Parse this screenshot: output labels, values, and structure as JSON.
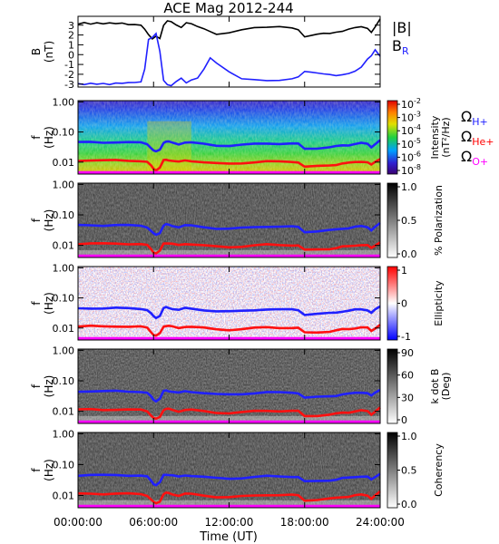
{
  "title": "ACE Mag 2012-244",
  "chart_data": [
    {
      "type": "line",
      "ylabel": "B",
      "yunit": "(nT)",
      "yticks": [
        "3",
        "2",
        "1",
        "0",
        "-1",
        "-2",
        "-3"
      ],
      "ylim": [
        -3.3,
        3.9
      ],
      "legend": [
        {
          "name": "|B|",
          "color": "#000000"
        },
        {
          "name": "B",
          "sub": "R",
          "color": "#2020ff"
        }
      ],
      "series": [
        {
          "name": "|B|",
          "color": "#000000",
          "x": [
            0,
            0.5,
            1,
            1.5,
            2,
            2.5,
            3,
            3.5,
            4,
            4.5,
            5,
            5.3,
            5.6,
            5.9,
            6.2,
            6.5,
            6.8,
            7.1,
            7.4,
            7.8,
            8.2,
            8.6,
            9,
            9.5,
            10,
            10.5,
            11,
            12,
            13,
            14,
            15,
            16,
            17,
            17.5,
            18,
            18.5,
            19,
            19.5,
            20,
            20.5,
            21,
            21.5,
            22,
            22.5,
            23,
            23.3,
            23.6,
            24
          ],
          "y": [
            3.1,
            3.2,
            3.1,
            3.2,
            3.1,
            3.2,
            3.1,
            3.2,
            3.1,
            3.1,
            3.0,
            2.6,
            2.1,
            1.6,
            1.9,
            1.6,
            2.9,
            3.4,
            3.3,
            3.0,
            2.7,
            3.2,
            3.1,
            2.9,
            2.7,
            2.4,
            2.1,
            2.3,
            2.6,
            2.8,
            2.7,
            2.8,
            2.7,
            2.5,
            1.8,
            1.9,
            2.0,
            2.1,
            2.2,
            2.3,
            2.4,
            2.6,
            2.8,
            2.9,
            2.7,
            2.2,
            2.8,
            3.6
          ]
        },
        {
          "name": "B_R",
          "color": "#2020ff",
          "x": [
            0,
            0.5,
            1,
            1.5,
            2,
            2.5,
            3,
            3.5,
            4,
            4.5,
            5,
            5.3,
            5.6,
            5.9,
            6.2,
            6.5,
            6.8,
            7.1,
            7.4,
            7.8,
            8.2,
            8.6,
            9,
            9.5,
            10,
            10.5,
            11,
            12,
            13,
            14,
            15,
            16,
            17,
            17.5,
            18,
            18.5,
            19,
            19.5,
            20,
            20.5,
            21,
            21.5,
            22,
            22.5,
            23,
            23.3,
            23.6,
            24
          ],
          "y": [
            -2.9,
            -3.0,
            -2.9,
            -3.0,
            -2.9,
            -3.0,
            -2.9,
            -3.0,
            -2.9,
            -2.9,
            -2.8,
            -1.5,
            1.5,
            1.8,
            2.2,
            0.4,
            -2.6,
            -3.0,
            -3.1,
            -2.7,
            -2.4,
            -2.9,
            -2.6,
            -2.4,
            -1.5,
            -0.4,
            -0.9,
            -1.8,
            -2.4,
            -2.5,
            -2.6,
            -2.6,
            -2.4,
            -2.2,
            -1.7,
            -1.8,
            -1.9,
            -2.0,
            -2.1,
            -2.2,
            -2.1,
            -2.0,
            -1.7,
            -1.2,
            -0.4,
            -0.1,
            0.5,
            -0.1
          ]
        }
      ]
    },
    {
      "type": "heatmap",
      "ylabel": "f",
      "yunit": "(Hz)",
      "yticks": [
        "1.00",
        "0.10",
        "0.01"
      ],
      "ylim": [
        0.004,
        1.1
      ],
      "yscale": "log",
      "colorbar": {
        "colormap": "rainbow",
        "ticks": [
          "10",
          "10",
          "10",
          "10",
          "10",
          "10"
        ],
        "exponents": [
          "-2",
          "-3",
          "-4",
          "-5",
          "-6",
          "-8"
        ],
        "label": "Intensity",
        "unit": "(nT²/Hz)"
      },
      "legend": [
        {
          "name": "Ω",
          "sub": "H+",
          "color": "#2020ff"
        },
        {
          "name": "Ω",
          "sub": "He+",
          "color": "#ff0000"
        },
        {
          "name": "Ω",
          "sub": "O+",
          "color": "#ff00ff"
        }
      ]
    },
    {
      "type": "heatmap",
      "ylabel": "f",
      "yunit": "(Hz)",
      "yticks": [
        "1.00",
        "0.10",
        "0.01"
      ],
      "ylim": [
        0.004,
        1.1
      ],
      "yscale": "log",
      "colorbar": {
        "colormap": "gray",
        "ticks": [
          "1.0",
          "0.5",
          "0.0"
        ],
        "label": "% Polarization"
      }
    },
    {
      "type": "heatmap",
      "ylabel": "f",
      "yunit": "(Hz)",
      "yticks": [
        "1.00",
        "0.10",
        "0.01"
      ],
      "ylim": [
        0.004,
        1.1
      ],
      "yscale": "log",
      "colorbar": {
        "colormap": "bwr",
        "ticks": [
          "1",
          "0",
          "-1"
        ],
        "label": "Ellipticity"
      }
    },
    {
      "type": "heatmap",
      "ylabel": "f",
      "yunit": "(Hz)",
      "yticks": [
        "1.00",
        "0.10",
        "0.01"
      ],
      "ylim": [
        0.004,
        1.1
      ],
      "yscale": "log",
      "colorbar": {
        "colormap": "gray_r",
        "ticks": [
          "90",
          "60",
          "30",
          "0"
        ],
        "label": "k dot B",
        "unit": "(Deg)"
      }
    },
    {
      "type": "heatmap",
      "ylabel": "f",
      "yunit": "(Hz)",
      "yticks": [
        "1.00",
        "0.10",
        "0.01"
      ],
      "ylim": [
        0.004,
        1.1
      ],
      "yscale": "log",
      "colorbar": {
        "colormap": "gray",
        "ticks": [
          "1.0",
          "0.5",
          "0.0"
        ],
        "label": "Coherency"
      }
    }
  ],
  "gyro": {
    "x": [
      0,
      1,
      2,
      3,
      4,
      5,
      5.5,
      5.8,
      6.0,
      6.2,
      6.5,
      6.8,
      7.0,
      7.2,
      7.5,
      8.0,
      8.5,
      9,
      10,
      11,
      12,
      13,
      14,
      15,
      16,
      17,
      17.5,
      18,
      19,
      20,
      20.5,
      21,
      21.5,
      22,
      22.5,
      23,
      23.3,
      23.6,
      24
    ],
    "h": [
      0.045,
      0.046,
      0.045,
      0.046,
      0.045,
      0.044,
      0.04,
      0.03,
      0.024,
      0.022,
      0.026,
      0.045,
      0.048,
      0.047,
      0.044,
      0.04,
      0.045,
      0.044,
      0.04,
      0.036,
      0.035,
      0.037,
      0.04,
      0.042,
      0.041,
      0.041,
      0.04,
      0.028,
      0.029,
      0.031,
      0.033,
      0.036,
      0.037,
      0.04,
      0.042,
      0.04,
      0.032,
      0.04,
      0.052
    ],
    "he_ratio": 0.25,
    "o": 0.0045,
    "xlabel": "Time (UT)",
    "xticks": [
      "00:00:00",
      "06:00:00",
      "12:00:00",
      "18:00:00",
      "24:00:00"
    ],
    "xtick_hours": [
      0,
      6,
      12,
      18,
      24
    ]
  }
}
